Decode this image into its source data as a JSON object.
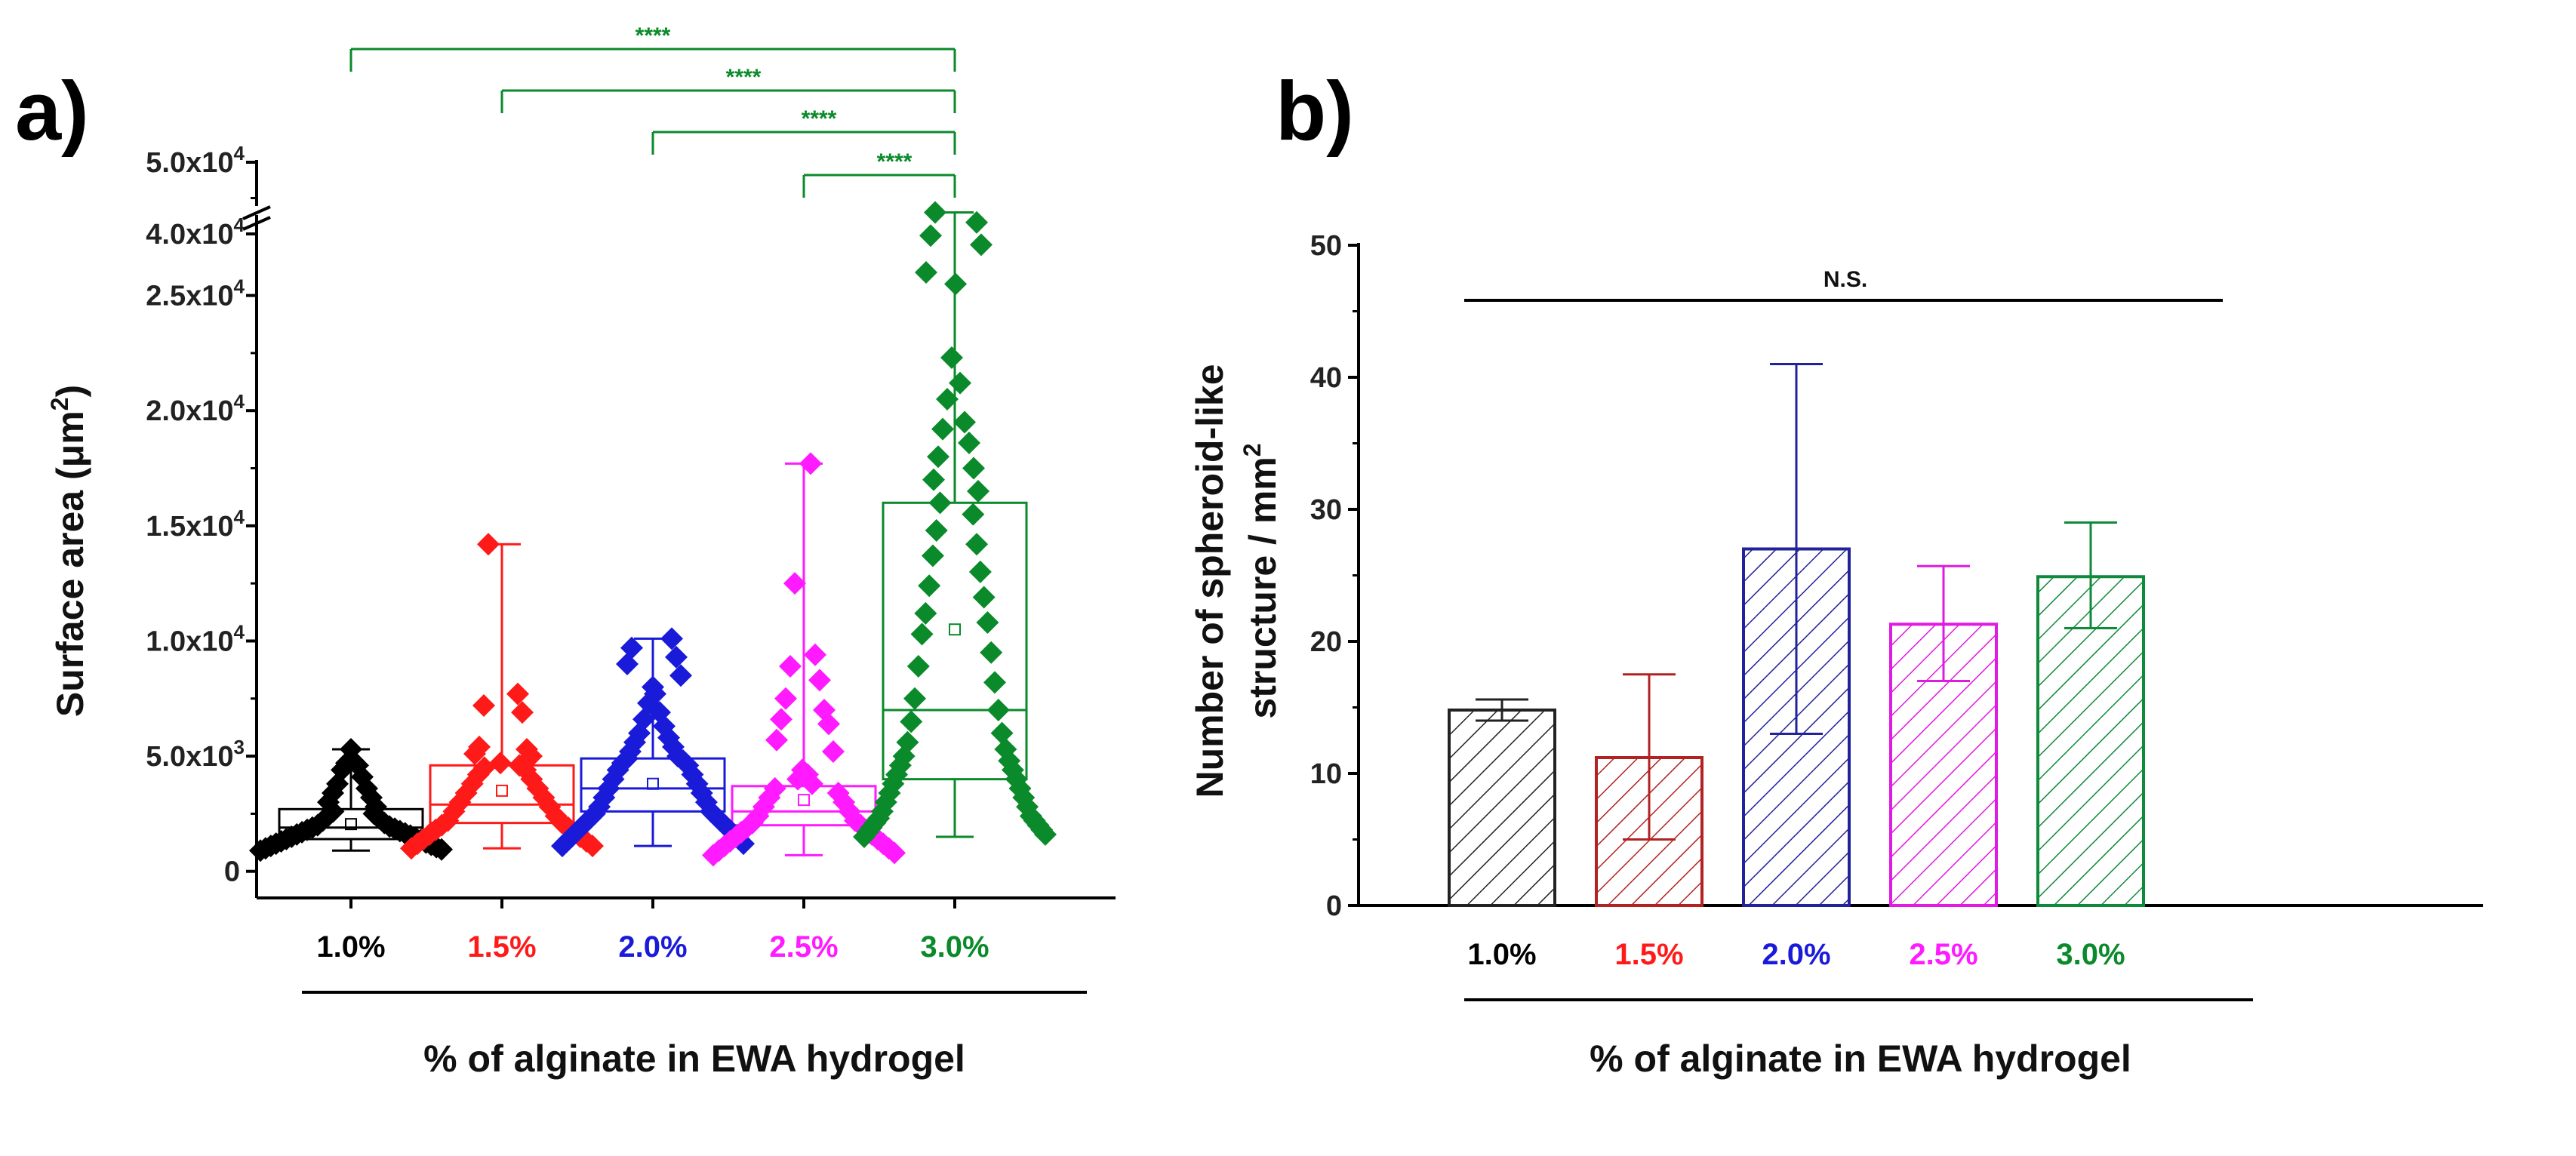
{
  "colors": {
    "c1": "#000000",
    "c2": "#ff1a1a",
    "c3": "#1a1ad9",
    "c4": "#ff1aff",
    "c5": "#0a8a2a",
    "bar1": "#222222",
    "bar2": "#b22222",
    "bar3": "#22229a",
    "bar4": "#e01ae0",
    "bar5": "#0f8a3a"
  },
  "chart_data": [
    {
      "panel_label": "a)",
      "type": "box",
      "xlabel": "% of alginate in EWA hydrogel",
      "ylabel_main": "Surface area (μm",
      "ylabel_sup": "2",
      "ylabel_close": ")",
      "categories": [
        "1.0%",
        "1.5%",
        "2.0%",
        "2.5%",
        "3.0%"
      ],
      "yticks_lower": [
        {
          "value": 0,
          "base": "0",
          "exp": ""
        },
        {
          "value": 5000,
          "base": "5.0x10",
          "exp": "3"
        },
        {
          "value": 10000,
          "base": "1.0x10",
          "exp": "4"
        },
        {
          "value": 15000,
          "base": "1.5x10",
          "exp": "4"
        },
        {
          "value": 20000,
          "base": "2.0x10",
          "exp": "4"
        },
        {
          "value": 25000,
          "base": "2.5x10",
          "exp": "4"
        }
      ],
      "yticks_upper": [
        {
          "value": 40000,
          "base": "4.0x10",
          "exp": "4"
        },
        {
          "value": 50000,
          "base": "5.0x10",
          "exp": "4"
        }
      ],
      "axis_break": [
        28000,
        40000
      ],
      "ylim": [
        -500,
        50000
      ],
      "boxes": [
        {
          "name": "1.0%",
          "q1": 1400,
          "median": 1900,
          "q3": 2700,
          "mean": 2050,
          "whisker_low": 900,
          "whisker_high": 5300,
          "points": [
            900,
            950,
            1000,
            1050,
            1100,
            1150,
            1200,
            1250,
            1300,
            1350,
            1400,
            1450,
            1500,
            1550,
            1600,
            1650,
            1700,
            1750,
            1800,
            1850,
            1900,
            1950,
            2000,
            2100,
            2200,
            2300,
            2400,
            2500,
            2600,
            2800,
            3000,
            3200,
            3400,
            3600,
            3800,
            4100,
            4400,
            4600,
            4700,
            4800,
            5300
          ]
        },
        {
          "name": "1.5%",
          "q1": 2100,
          "median": 2900,
          "q3": 4600,
          "mean": 3500,
          "whisker_low": 1000,
          "whisker_high": 14200,
          "points": [
            1000,
            1100,
            1200,
            1300,
            1400,
            1500,
            1600,
            1700,
            1800,
            1900,
            2000,
            2100,
            2200,
            2400,
            2600,
            2800,
            3000,
            3200,
            3400,
            3600,
            3800,
            4000,
            4200,
            4400,
            4500,
            4600,
            4700,
            5000,
            5100,
            5300,
            5400,
            6900,
            7200,
            7700,
            14200
          ]
        },
        {
          "name": "2.0%",
          "q1": 2600,
          "median": 3600,
          "q3": 4900,
          "mean": 3800,
          "whisker_low": 1100,
          "whisker_high": 10100,
          "points": [
            1100,
            1200,
            1300,
            1400,
            1500,
            1600,
            1700,
            1800,
            1900,
            2000,
            2100,
            2200,
            2300,
            2400,
            2500,
            2600,
            2800,
            3000,
            3200,
            3400,
            3600,
            3800,
            4000,
            4200,
            4400,
            4600,
            4700,
            4800,
            4900,
            5000,
            5200,
            5400,
            5600,
            5800,
            6000,
            6300,
            6600,
            6900,
            7300,
            7700,
            8000,
            8500,
            9000,
            9300,
            9700,
            10100
          ]
        },
        {
          "name": "2.5%",
          "q1": 2000,
          "median": 2600,
          "q3": 3700,
          "mean": 3100,
          "whisker_low": 700,
          "whisker_high": 17700,
          "points": [
            700,
            800,
            900,
            1000,
            1100,
            1200,
            1300,
            1400,
            1500,
            1600,
            1700,
            1800,
            1900,
            2000,
            2100,
            2200,
            2400,
            2600,
            2800,
            3000,
            3200,
            3400,
            3600,
            3800,
            4000,
            4200,
            4400,
            5200,
            5700,
            6400,
            6600,
            7000,
            7500,
            8300,
            8900,
            9400,
            12500,
            17700
          ]
        },
        {
          "name": "3.0%",
          "q1": 4000,
          "median": 7000,
          "q3": 16000,
          "mean": 10500,
          "whisker_low": 1500,
          "whisker_high": 43000,
          "points": [
            1500,
            1600,
            1700,
            1800,
            1900,
            2000,
            2100,
            2200,
            2300,
            2400,
            2600,
            2800,
            3000,
            3200,
            3400,
            3600,
            3800,
            4000,
            4200,
            4400,
            4600,
            4800,
            5000,
            5300,
            5600,
            6000,
            6500,
            7000,
            7500,
            8200,
            8900,
            9500,
            10300,
            10800,
            11200,
            11900,
            12400,
            13000,
            13700,
            14200,
            14800,
            15500,
            16000,
            16500,
            17000,
            17500,
            18000,
            18600,
            19200,
            19500,
            20500,
            21200,
            22300,
            25500,
            26000,
            27200,
            27600,
            41600,
            43000
          ]
        }
      ],
      "significance": [
        {
          "from": "1.0%",
          "to": "3.0%",
          "label": "****"
        },
        {
          "from": "1.5%",
          "to": "3.0%",
          "label": "****"
        },
        {
          "from": "2.0%",
          "to": "3.0%",
          "label": "****"
        },
        {
          "from": "2.5%",
          "to": "3.0%",
          "label": "****"
        }
      ]
    },
    {
      "panel_label": "b)",
      "type": "bar",
      "xlabel": "% of alginate in EWA hydrogel",
      "ylabel_line1": "Number of spheroid-like",
      "ylabel_line2_main": "structure / mm",
      "ylabel_line2_sup": "2",
      "categories": [
        "1.0%",
        "1.5%",
        "2.0%",
        "2.5%",
        "3.0%"
      ],
      "values": [
        14.8,
        11.2,
        27.0,
        21.3,
        24.9
      ],
      "error_low": [
        14.0,
        5.0,
        13.0,
        17.0,
        21.0
      ],
      "error_high": [
        15.6,
        17.5,
        41.0,
        25.7,
        29.0
      ],
      "ylim": [
        0,
        50
      ],
      "yticks": [
        "0",
        "10",
        "20",
        "30",
        "40",
        "50"
      ],
      "significance_label": "N.S."
    }
  ]
}
